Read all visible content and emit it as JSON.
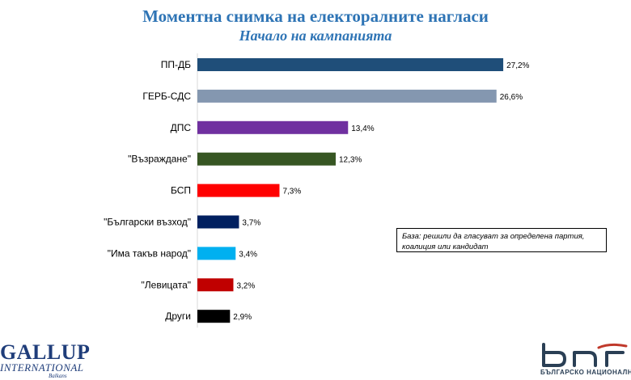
{
  "title": "Моментна снимка на електоралните нагласи",
  "subtitle": "Начало на кампанията",
  "note": "База: решили да гласуват за определена партия, коалиция или кандидат",
  "logos": {
    "gallup_line1": "GALLUP",
    "gallup_line2": "INTERNATIONAL",
    "gallup_line3": "Balkans",
    "bnr_sub": "БЪЛГАРСКО НАЦИОНАЛНО РАДИ"
  },
  "chart_data": {
    "type": "bar",
    "orientation": "horizontal",
    "categories": [
      "ПП-ДБ",
      "ГЕРБ-СДС",
      "ДПС",
      "\"Възраждане\"",
      "БСП",
      "\"Български възход\"",
      "\"Има такъв народ\"",
      "\"Левицата\"",
      "Други"
    ],
    "values": [
      27.2,
      26.6,
      13.4,
      12.3,
      7.3,
      3.7,
      3.4,
      3.2,
      2.9
    ],
    "value_labels": [
      "27,2%",
      "26,6%",
      "13,4%",
      "12,3%",
      "7,3%",
      "3,7%",
      "3,4%",
      "3,2%",
      "2,9%"
    ],
    "colors": [
      "#1f4e79",
      "#8497b0",
      "#7030a0",
      "#375623",
      "#ff0000",
      "#002060",
      "#00b0f0",
      "#c00000",
      "#000000"
    ],
    "xlim": [
      0,
      30
    ],
    "grid": false,
    "legend": "none"
  }
}
